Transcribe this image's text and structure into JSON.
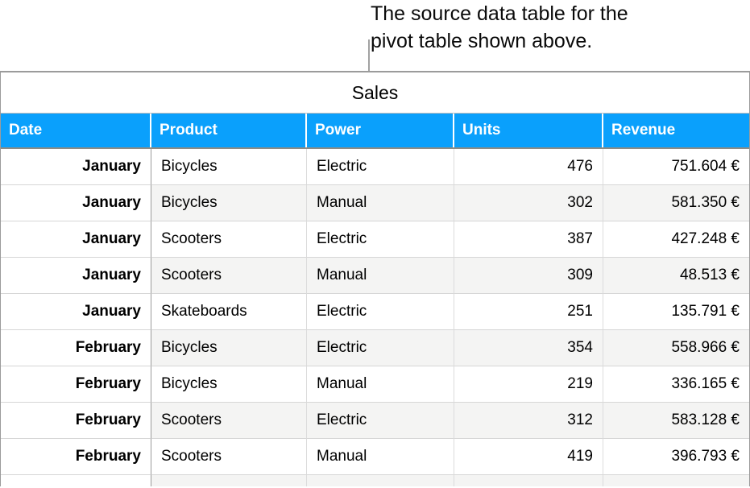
{
  "caption": {
    "line1": "The source data table for the",
    "line2": "pivot table shown above."
  },
  "table": {
    "title": "Sales",
    "columns": [
      {
        "id": "date",
        "label": "Date",
        "align": "right"
      },
      {
        "id": "product",
        "label": "Product",
        "align": "left"
      },
      {
        "id": "power",
        "label": "Power",
        "align": "left"
      },
      {
        "id": "units",
        "label": "Units",
        "align": "right"
      },
      {
        "id": "revenue",
        "label": "Revenue",
        "align": "right"
      }
    ],
    "rows": [
      {
        "date": "January",
        "product": "Bicycles",
        "power": "Electric",
        "units": "476",
        "revenue": "751.604 €"
      },
      {
        "date": "January",
        "product": "Bicycles",
        "power": "Manual",
        "units": "302",
        "revenue": "581.350 €"
      },
      {
        "date": "January",
        "product": "Scooters",
        "power": "Electric",
        "units": "387",
        "revenue": "427.248 €"
      },
      {
        "date": "January",
        "product": "Scooters",
        "power": "Manual",
        "units": "309",
        "revenue": "48.513 €"
      },
      {
        "date": "January",
        "product": "Skateboards",
        "power": "Electric",
        "units": "251",
        "revenue": "135.791 €"
      },
      {
        "date": "February",
        "product": "Bicycles",
        "power": "Electric",
        "units": "354",
        "revenue": "558.966 €"
      },
      {
        "date": "February",
        "product": "Bicycles",
        "power": "Manual",
        "units": "219",
        "revenue": "336.165 €"
      },
      {
        "date": "February",
        "product": "Scooters",
        "power": "Electric",
        "units": "312",
        "revenue": "583.128 €"
      },
      {
        "date": "February",
        "product": "Scooters",
        "power": "Manual",
        "units": "419",
        "revenue": "396.793 €"
      }
    ]
  },
  "colors": {
    "header_bg": "#0AA0FC",
    "header_text": "#FFFFFF",
    "row_stripe": "#F4F4F3",
    "grid_light": "#D6D6D6",
    "grid_dark": "#9B9B9B",
    "leader_line": "#A2A2A2"
  }
}
